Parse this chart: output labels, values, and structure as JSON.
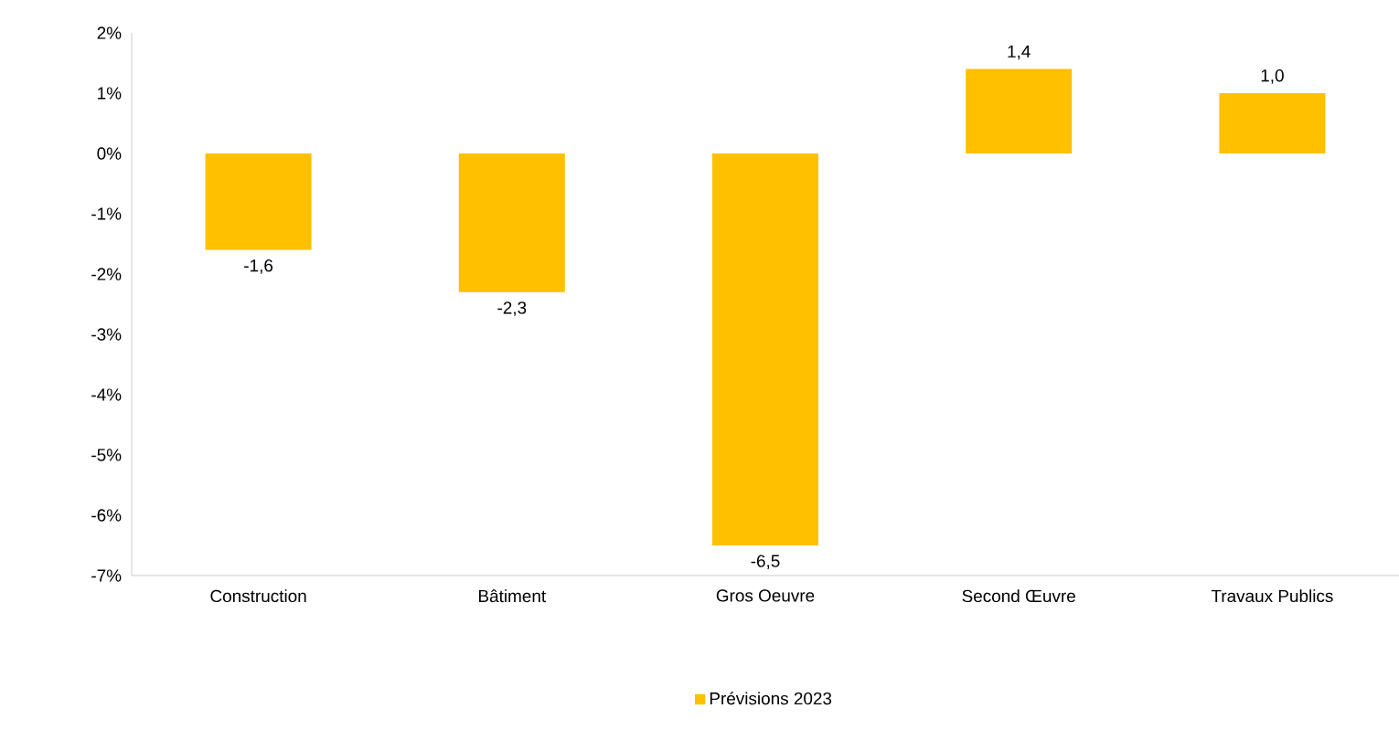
{
  "chart_data": {
    "type": "bar",
    "categories": [
      "Construction",
      "Bâtiment",
      "Gros Oeuvre",
      "Second Œuvre",
      "Travaux Publics"
    ],
    "series": [
      {
        "name": "Prévisions 2023",
        "color": "#ffc000",
        "values": [
          -1.6,
          -2.3,
          -6.5,
          1.4,
          1.0
        ],
        "value_labels": [
          "-1,6",
          "-2,3",
          "-6,5",
          "1,4",
          "1,0"
        ]
      }
    ],
    "ylim": [
      -7,
      2
    ],
    "yticks": [
      {
        "value": -7,
        "label": "-7%"
      },
      {
        "value": -6,
        "label": "-6%"
      },
      {
        "value": -5,
        "label": "-5%"
      },
      {
        "value": -4,
        "label": "-4%"
      },
      {
        "value": -3,
        "label": "-3%"
      },
      {
        "value": -2,
        "label": "-2%"
      },
      {
        "value": -1,
        "label": "-1%"
      },
      {
        "value": 0,
        "label": "0%"
      },
      {
        "value": 1,
        "label": "1%"
      },
      {
        "value": 2,
        "label": "2%"
      }
    ],
    "legend": "bottom"
  }
}
